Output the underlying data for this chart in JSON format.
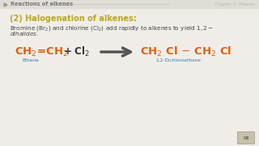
{
  "bg_color": "#f0ede8",
  "header_bg": "#e0dcd6",
  "header_text": "Reactions of alkenes",
  "header_right": "Chapter 5: Alkenes",
  "header_color": "#777777",
  "title_text": "(2) Halogenation of alkenes:",
  "title_color": "#b8a820",
  "body_color": "#444444",
  "reactant_color": "#e06010",
  "product_color": "#e06010",
  "reactant_label": "Ethene",
  "product_label": "1,2-Dichloroethane",
  "label_color": "#3a7ab5",
  "arrow_color": "#555555"
}
